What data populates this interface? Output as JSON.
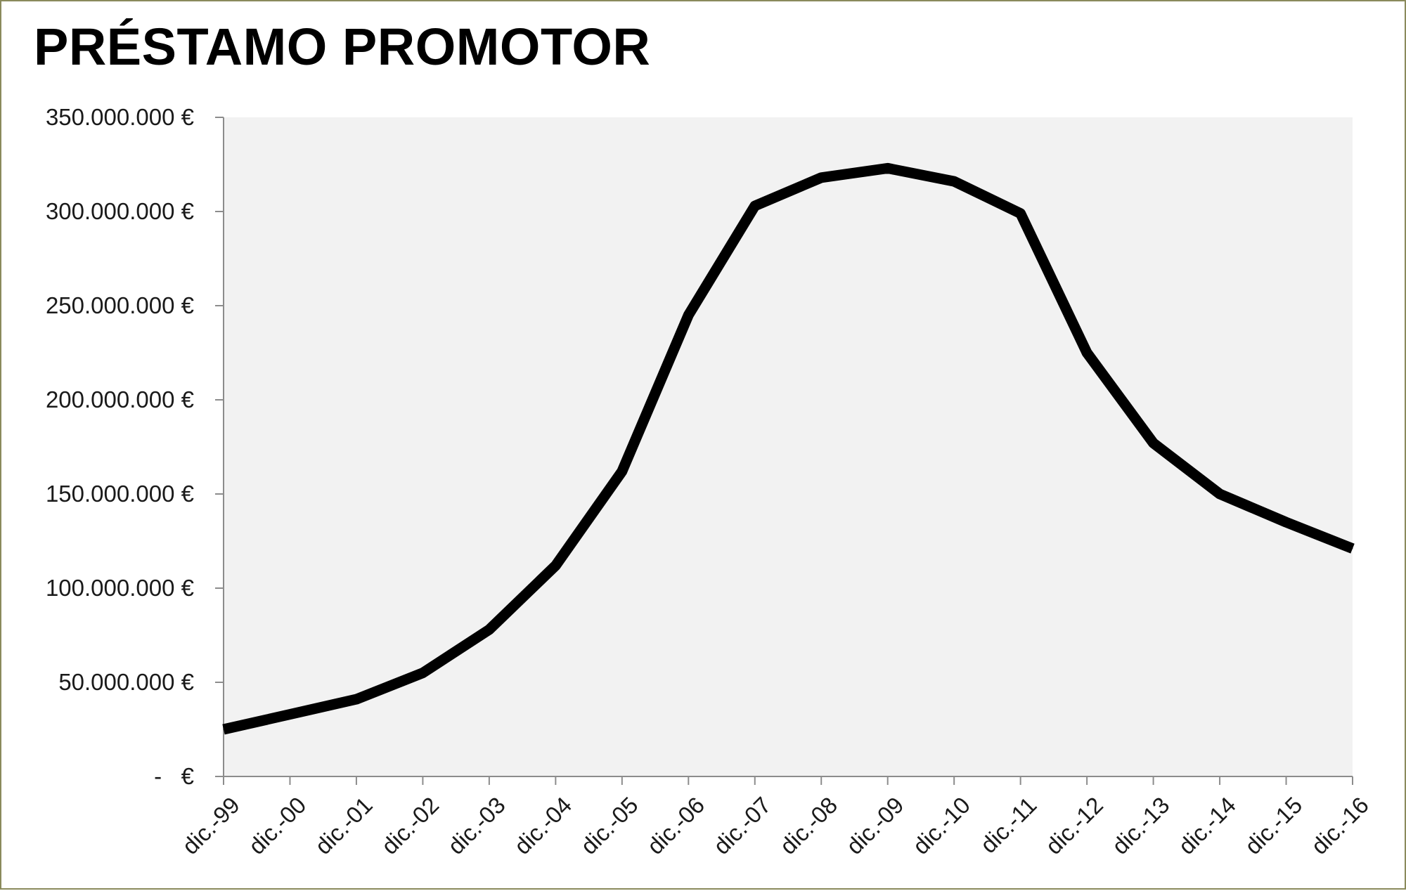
{
  "chart_data": {
    "type": "line",
    "title": "PRÉSTAMO PROMOTOR",
    "xlabel": "",
    "ylabel": "",
    "categories": [
      "dic.-99",
      "dic.-00",
      "dic.-01",
      "dic.-02",
      "dic.-03",
      "dic.-04",
      "dic.-05",
      "dic.-06",
      "dic.-07",
      "dic.-08",
      "dic.-09",
      "dic.-10",
      "dic.-11",
      "dic.-12",
      "dic.-13",
      "dic.-14",
      "dic.-15",
      "dic.-16"
    ],
    "series": [
      {
        "values": [
          25000000,
          33000000,
          41000000,
          55000000,
          78000000,
          112000000,
          162000000,
          245000000,
          303000000,
          318000000,
          323000000,
          316000000,
          299000000,
          225000000,
          177000000,
          150000000,
          135000000,
          121000000
        ],
        "color": "#000000"
      }
    ],
    "ylim": [
      0,
      350000000
    ],
    "yticks": [
      0,
      50000000,
      100000000,
      150000000,
      200000000,
      250000000,
      300000000,
      350000000
    ],
    "ytick_labels": [
      "-   €",
      "50.000.000 €",
      "100.000.000 €",
      "150.000.000 €",
      "200.000.000 €",
      "250.000.000 €",
      "300.000.000 €",
      "350.000.000 €"
    ],
    "grid": false,
    "legend": "none",
    "plot_background": "#f2f2f2",
    "frame_color": "#8a8a5c"
  }
}
